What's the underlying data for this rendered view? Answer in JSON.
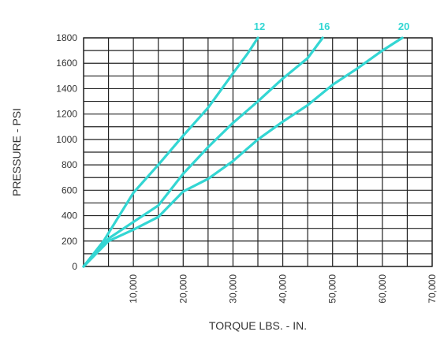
{
  "chart_data": {
    "type": "line",
    "xlabel": "TORQUE LBS. - IN.",
    "ylabel": "PRESSURE - PSI",
    "xlim": [
      0,
      70000
    ],
    "ylim": [
      0,
      1800
    ],
    "x_ticks": [
      "10,000",
      "20,000",
      "30,000",
      "40,000",
      "50,000",
      "60,000",
      "70,000"
    ],
    "y_ticks": [
      "0",
      "200",
      "400",
      "600",
      "800",
      "1000",
      "1200",
      "1400",
      "1600",
      "1800"
    ],
    "grid": true,
    "line_color": "#33d6d3",
    "series": [
      {
        "name": "12",
        "x": [
          0,
          4000,
          10000,
          15000,
          20000,
          25000,
          30000,
          33000,
          35000
        ],
        "y": [
          0,
          200,
          580,
          800,
          1030,
          1250,
          1520,
          1680,
          1800
        ]
      },
      {
        "name": "16",
        "x": [
          0,
          5000,
          10000,
          15000,
          20000,
          25000,
          30000,
          35000,
          40000,
          45000,
          48000
        ],
        "y": [
          0,
          220,
          350,
          480,
          730,
          940,
          1130,
          1300,
          1480,
          1640,
          1800
        ]
      },
      {
        "name": "20",
        "x": [
          0,
          5000,
          10000,
          15000,
          20000,
          25000,
          30000,
          35000,
          40000,
          45000,
          50000,
          55000,
          60000,
          64000
        ],
        "y": [
          0,
          200,
          290,
          390,
          590,
          690,
          830,
          1000,
          1140,
          1270,
          1430,
          1560,
          1700,
          1800
        ]
      }
    ]
  }
}
